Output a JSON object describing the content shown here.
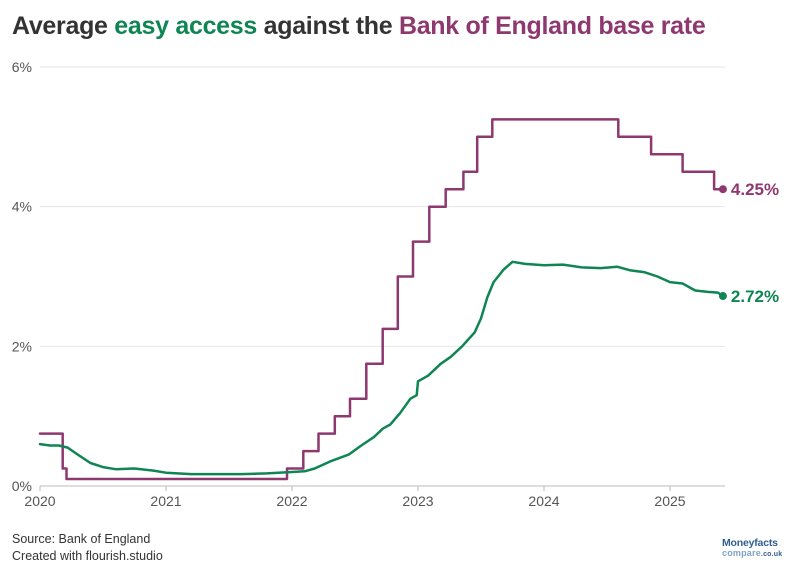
{
  "title": {
    "part1": "Average ",
    "part2": "easy access",
    "part3": " against the ",
    "part4": "Bank of England base rate"
  },
  "footer": {
    "source": "Source: Bank of England",
    "credit": "Created with flourish.studio"
  },
  "logo": {
    "line1": "Moneyfacts",
    "line2": "compare",
    "line2_suffix": ".co.uk"
  },
  "colors": {
    "easy_access": "#0f8554",
    "base_rate": "#8e3870",
    "grid": "#e6e6e6",
    "axis": "#bbbbbb",
    "text": "#333333"
  },
  "chart_data": {
    "type": "line",
    "title": "Average easy access against the Bank of England base rate",
    "xlabel": "",
    "ylabel": "",
    "x_ticks": [
      "2020",
      "2021",
      "2022",
      "2023",
      "2024",
      "2025"
    ],
    "x_tick_values": [
      2020,
      2021,
      2022,
      2023,
      2024,
      2025
    ],
    "y_ticks": [
      "0%",
      "2%",
      "4%",
      "6%"
    ],
    "y_tick_values": [
      0,
      2,
      4,
      6
    ],
    "xlim": [
      2020,
      2025.44
    ],
    "ylim": [
      0,
      6
    ],
    "grid": true,
    "legend": "none (inline end labels)",
    "series": [
      {
        "name": "Bank of England base rate",
        "key": "base_rate",
        "step": true,
        "end_label": "4.25%",
        "points": [
          [
            2020.0,
            0.75
          ],
          [
            2020.18,
            0.75
          ],
          [
            2020.18,
            0.25
          ],
          [
            2020.21,
            0.25
          ],
          [
            2020.21,
            0.1
          ],
          [
            2021.96,
            0.1
          ],
          [
            2021.96,
            0.25
          ],
          [
            2022.09,
            0.25
          ],
          [
            2022.09,
            0.5
          ],
          [
            2022.21,
            0.5
          ],
          [
            2022.21,
            0.75
          ],
          [
            2022.34,
            0.75
          ],
          [
            2022.34,
            1.0
          ],
          [
            2022.46,
            1.0
          ],
          [
            2022.46,
            1.25
          ],
          [
            2022.59,
            1.25
          ],
          [
            2022.59,
            1.75
          ],
          [
            2022.72,
            1.75
          ],
          [
            2022.72,
            2.25
          ],
          [
            2022.84,
            2.25
          ],
          [
            2022.84,
            3.0
          ],
          [
            2022.96,
            3.0
          ],
          [
            2022.96,
            3.5
          ],
          [
            2023.09,
            3.5
          ],
          [
            2023.09,
            4.0
          ],
          [
            2023.22,
            4.0
          ],
          [
            2023.22,
            4.25
          ],
          [
            2023.36,
            4.25
          ],
          [
            2023.36,
            4.5
          ],
          [
            2023.47,
            4.5
          ],
          [
            2023.47,
            5.0
          ],
          [
            2023.59,
            5.0
          ],
          [
            2023.59,
            5.25
          ],
          [
            2024.59,
            5.25
          ],
          [
            2024.59,
            5.0
          ],
          [
            2024.85,
            5.0
          ],
          [
            2024.85,
            4.75
          ],
          [
            2025.1,
            4.75
          ],
          [
            2025.1,
            4.5
          ],
          [
            2025.35,
            4.5
          ],
          [
            2025.35,
            4.25
          ],
          [
            2025.42,
            4.25
          ]
        ]
      },
      {
        "name": "Average easy access",
        "key": "easy_access",
        "step": false,
        "end_label": "2.72%",
        "points": [
          [
            2020.0,
            0.6
          ],
          [
            2020.08,
            0.58
          ],
          [
            2020.15,
            0.58
          ],
          [
            2020.22,
            0.55
          ],
          [
            2020.3,
            0.45
          ],
          [
            2020.4,
            0.33
          ],
          [
            2020.5,
            0.27
          ],
          [
            2020.6,
            0.24
          ],
          [
            2020.75,
            0.25
          ],
          [
            2020.9,
            0.22
          ],
          [
            2021.0,
            0.19
          ],
          [
            2021.2,
            0.17
          ],
          [
            2021.4,
            0.17
          ],
          [
            2021.6,
            0.17
          ],
          [
            2021.8,
            0.18
          ],
          [
            2022.0,
            0.2
          ],
          [
            2022.1,
            0.21
          ],
          [
            2022.18,
            0.25
          ],
          [
            2022.3,
            0.35
          ],
          [
            2022.45,
            0.45
          ],
          [
            2022.55,
            0.58
          ],
          [
            2022.65,
            0.7
          ],
          [
            2022.72,
            0.82
          ],
          [
            2022.78,
            0.88
          ],
          [
            2022.86,
            1.05
          ],
          [
            2022.94,
            1.25
          ],
          [
            2022.99,
            1.3
          ],
          [
            2023.0,
            1.5
          ],
          [
            2023.08,
            1.58
          ],
          [
            2023.18,
            1.75
          ],
          [
            2023.26,
            1.85
          ],
          [
            2023.35,
            2.0
          ],
          [
            2023.45,
            2.2
          ],
          [
            2023.5,
            2.4
          ],
          [
            2023.55,
            2.7
          ],
          [
            2023.6,
            2.92
          ],
          [
            2023.68,
            3.1
          ],
          [
            2023.75,
            3.21
          ],
          [
            2023.85,
            3.18
          ],
          [
            2024.0,
            3.16
          ],
          [
            2024.15,
            3.17
          ],
          [
            2024.3,
            3.13
          ],
          [
            2024.45,
            3.12
          ],
          [
            2024.58,
            3.14
          ],
          [
            2024.68,
            3.09
          ],
          [
            2024.8,
            3.06
          ],
          [
            2024.9,
            3.0
          ],
          [
            2025.0,
            2.92
          ],
          [
            2025.1,
            2.9
          ],
          [
            2025.2,
            2.8
          ],
          [
            2025.3,
            2.78
          ],
          [
            2025.38,
            2.77
          ],
          [
            2025.42,
            2.72
          ]
        ]
      }
    ]
  }
}
